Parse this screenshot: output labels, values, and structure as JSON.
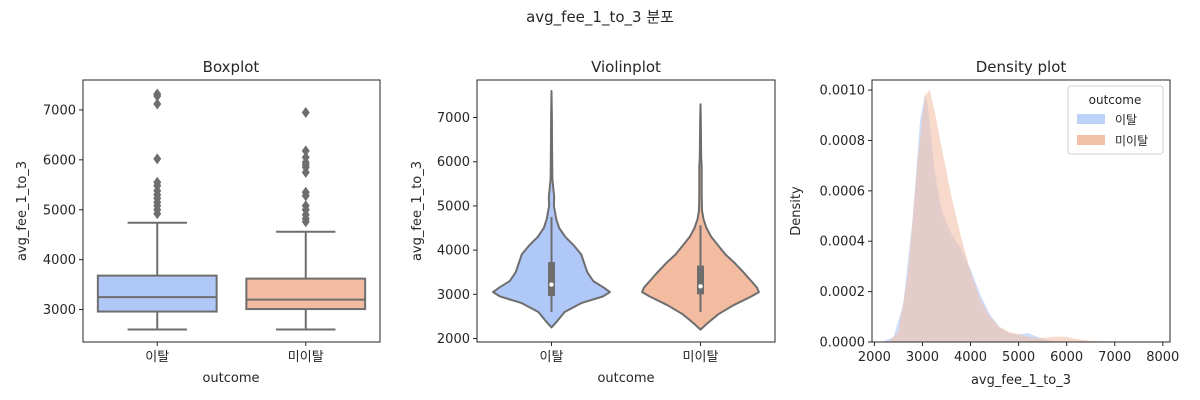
{
  "figure": {
    "suptitle": "avg_fee_1_to_3 분포"
  },
  "colors": {
    "churn": "#b0c8f8",
    "nochurn": "#f3bba0",
    "gray": "#6e6e6e",
    "kde_churn": "#bcd2f8",
    "kde_nochurn": "#f3c1aa"
  },
  "chart_data": [
    {
      "type": "box",
      "title": "Boxplot",
      "xlabel": "outcome",
      "ylabel": "avg_fee_1_to_3",
      "categories": [
        "이탈",
        "미이탈"
      ],
      "ylim": [
        2350,
        7600
      ],
      "yticks": [
        3000,
        4000,
        5000,
        6000,
        7000
      ],
      "boxes": [
        {
          "category": "이탈",
          "whislo": 2600,
          "q1": 2960,
          "med": 3250,
          "q3": 3680,
          "whishi": 4740,
          "fliers": [
            4920,
            5000,
            5080,
            5150,
            5230,
            5300,
            5380,
            5480,
            5550,
            6020,
            7120,
            7280,
            7320
          ]
        },
        {
          "category": "미이탈",
          "whislo": 2600,
          "q1": 3010,
          "med": 3200,
          "q3": 3620,
          "whishi": 4560,
          "fliers": [
            4760,
            4820,
            4900,
            5000,
            5080,
            5280,
            5350,
            5750,
            5850,
            5900,
            5950,
            6050,
            6180,
            6950
          ]
        }
      ]
    },
    {
      "type": "violin",
      "title": "Violinplot",
      "xlabel": "outcome",
      "ylabel": "avg_fee_1_to_3",
      "categories": [
        "이탈",
        "미이탈"
      ],
      "ylim": [
        1920,
        7850
      ],
      "yticks": [
        2000,
        3000,
        4000,
        5000,
        6000,
        7000
      ],
      "violins": [
        {
          "category": "이탈",
          "q1": 2960,
          "median": 3220,
          "q3": 3730,
          "whislo": 2600,
          "whishi": 4750,
          "profile": [
            [
              2250,
              0.0
            ],
            [
              2400,
              0.1
            ],
            [
              2600,
              0.22
            ],
            [
              2800,
              0.5
            ],
            [
              2950,
              0.86
            ],
            [
              3050,
              0.98
            ],
            [
              3150,
              0.88
            ],
            [
              3300,
              0.7
            ],
            [
              3500,
              0.6
            ],
            [
              3700,
              0.55
            ],
            [
              3900,
              0.5
            ],
            [
              4100,
              0.38
            ],
            [
              4300,
              0.23
            ],
            [
              4500,
              0.13
            ],
            [
              4700,
              0.08
            ],
            [
              4850,
              0.06
            ],
            [
              5000,
              0.04
            ],
            [
              5200,
              0.045
            ],
            [
              5400,
              0.03
            ],
            [
              5600,
              0.015
            ],
            [
              6000,
              0.012
            ],
            [
              6500,
              0.008
            ],
            [
              7000,
              0.006
            ],
            [
              7600,
              0.0
            ]
          ]
        },
        {
          "category": "미이탈",
          "q1": 3000,
          "median": 3180,
          "q3": 3650,
          "whislo": 2600,
          "whishi": 4560,
          "profile": [
            [
              2200,
              0.0
            ],
            [
              2350,
              0.12
            ],
            [
              2550,
              0.3
            ],
            [
              2750,
              0.55
            ],
            [
              2950,
              0.85
            ],
            [
              3050,
              0.98
            ],
            [
              3150,
              0.95
            ],
            [
              3300,
              0.85
            ],
            [
              3500,
              0.72
            ],
            [
              3700,
              0.58
            ],
            [
              3900,
              0.42
            ],
            [
              4100,
              0.3
            ],
            [
              4300,
              0.18
            ],
            [
              4500,
              0.1
            ],
            [
              4700,
              0.05
            ],
            [
              4900,
              0.025
            ],
            [
              5100,
              0.022
            ],
            [
              5300,
              0.02
            ],
            [
              5600,
              0.02
            ],
            [
              5900,
              0.02
            ],
            [
              6100,
              0.012
            ],
            [
              6500,
              0.008
            ],
            [
              7000,
              0.005
            ],
            [
              7300,
              0.0
            ]
          ]
        }
      ]
    },
    {
      "type": "area",
      "title": "Density plot",
      "xlabel": "avg_fee_1_to_3",
      "ylabel": "Density",
      "xlim": [
        1950,
        8150
      ],
      "ylim": [
        0,
        0.00104
      ],
      "xticks": [
        2000,
        3000,
        4000,
        5000,
        6000,
        7000,
        8000
      ],
      "yticks": [
        0.0,
        0.0002,
        0.0004,
        0.0006,
        0.0008,
        0.001
      ],
      "ytick_labels": [
        "0.0000",
        "0.0002",
        "0.0004",
        "0.0006",
        "0.0008",
        "0.0010"
      ],
      "legend": {
        "title": "outcome",
        "position": "top-right"
      },
      "series": [
        {
          "name": "이탈",
          "color_key": "kde_churn",
          "x": [
            2150,
            2400,
            2600,
            2800,
            2950,
            3050,
            3100,
            3150,
            3250,
            3400,
            3600,
            3800,
            4000,
            4200,
            4400,
            4600,
            4800,
            5000,
            5200,
            5400,
            5600,
            5800,
            6000,
            6500,
            7000
          ],
          "y": [
            0.0,
            2e-05,
            0.00015,
            0.0005,
            0.00088,
            0.00098,
            0.00095,
            0.00087,
            0.00068,
            0.00052,
            0.00043,
            0.00037,
            0.00029,
            0.00019,
            0.00011,
            6e-05,
            3.5e-05,
            3e-05,
            3.5e-05,
            2e-05,
            8e-06,
            3e-06,
            2e-06,
            5e-07,
            0.0
          ]
        },
        {
          "name": "미이탈",
          "color_key": "kde_nochurn",
          "x": [
            2300,
            2500,
            2700,
            2900,
            3050,
            3150,
            3250,
            3400,
            3600,
            3800,
            4000,
            4200,
            4400,
            4600,
            4800,
            5000,
            5200,
            5400,
            5600,
            5800,
            6000,
            6200,
            6500,
            7000,
            7400
          ],
          "y": [
            0.0,
            4e-05,
            0.00027,
            0.00072,
            0.00098,
            0.001,
            0.00092,
            0.00077,
            0.00058,
            0.00042,
            0.00028,
            0.00017,
            0.0001,
            6e-05,
            4e-05,
            3e-05,
            2e-05,
            1.5e-05,
            1.8e-05,
            2.2e-05,
            2e-05,
            1.2e-05,
            5e-06,
            2e-06,
            0.0
          ]
        }
      ]
    }
  ]
}
